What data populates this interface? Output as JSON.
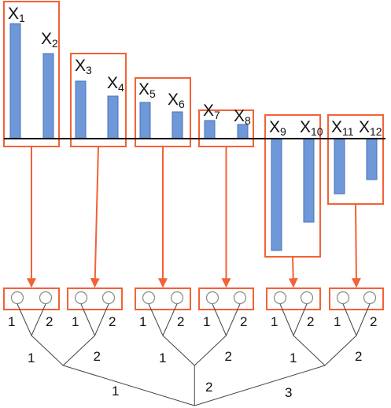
{
  "groups": [
    {
      "labels": [
        {
          "base": "X",
          "sub": "1"
        },
        {
          "base": "X",
          "sub": "2"
        }
      ]
    },
    {
      "labels": [
        {
          "base": "X",
          "sub": "3"
        },
        {
          "base": "X",
          "sub": "4"
        }
      ]
    },
    {
      "labels": [
        {
          "base": "X",
          "sub": "5"
        },
        {
          "base": "X",
          "sub": "6"
        }
      ]
    },
    {
      "labels": [
        {
          "base": "X",
          "sub": "7"
        },
        {
          "base": "X",
          "sub": "8"
        }
      ]
    },
    {
      "labels": [
        {
          "base": "X",
          "sub": "9"
        },
        {
          "base": "X",
          "sub": "10"
        }
      ]
    },
    {
      "labels": [
        {
          "base": "X",
          "sub": "11"
        },
        {
          "base": "X",
          "sub": "12"
        }
      ]
    }
  ],
  "tree": {
    "leaf_labels": [
      [
        "1",
        "2"
      ],
      [
        "1",
        "2"
      ],
      [
        "1",
        "2"
      ],
      [
        "1",
        "2"
      ],
      [
        "1",
        "2"
      ],
      [
        "1",
        "2"
      ]
    ],
    "pair_labels": [
      [
        "1",
        "2"
      ],
      [
        "1",
        "2"
      ],
      [
        "1",
        "2"
      ]
    ],
    "root_labels": [
      "1",
      "2",
      "3"
    ]
  }
}
